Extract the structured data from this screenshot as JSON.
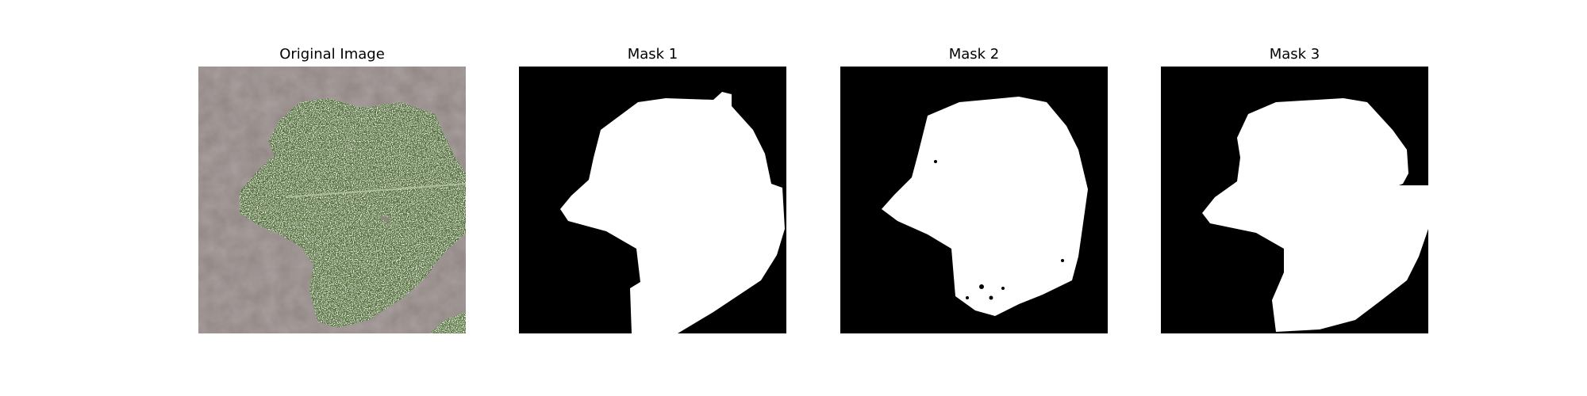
{
  "panels": [
    {
      "title": "Original Image",
      "kind": "photo",
      "subject": "leaf-photo"
    },
    {
      "title": "Mask 1",
      "kind": "mask"
    },
    {
      "title": "Mask 2",
      "kind": "mask"
    },
    {
      "title": "Mask 3",
      "kind": "mask"
    }
  ],
  "colors": {
    "background": "#ffffff",
    "mask_background": "#000000",
    "mask_foreground": "#ffffff",
    "photo_surface": "#8f8583",
    "leaf_green": "#56713e",
    "leaf_highlight": "#c9d6ba"
  }
}
